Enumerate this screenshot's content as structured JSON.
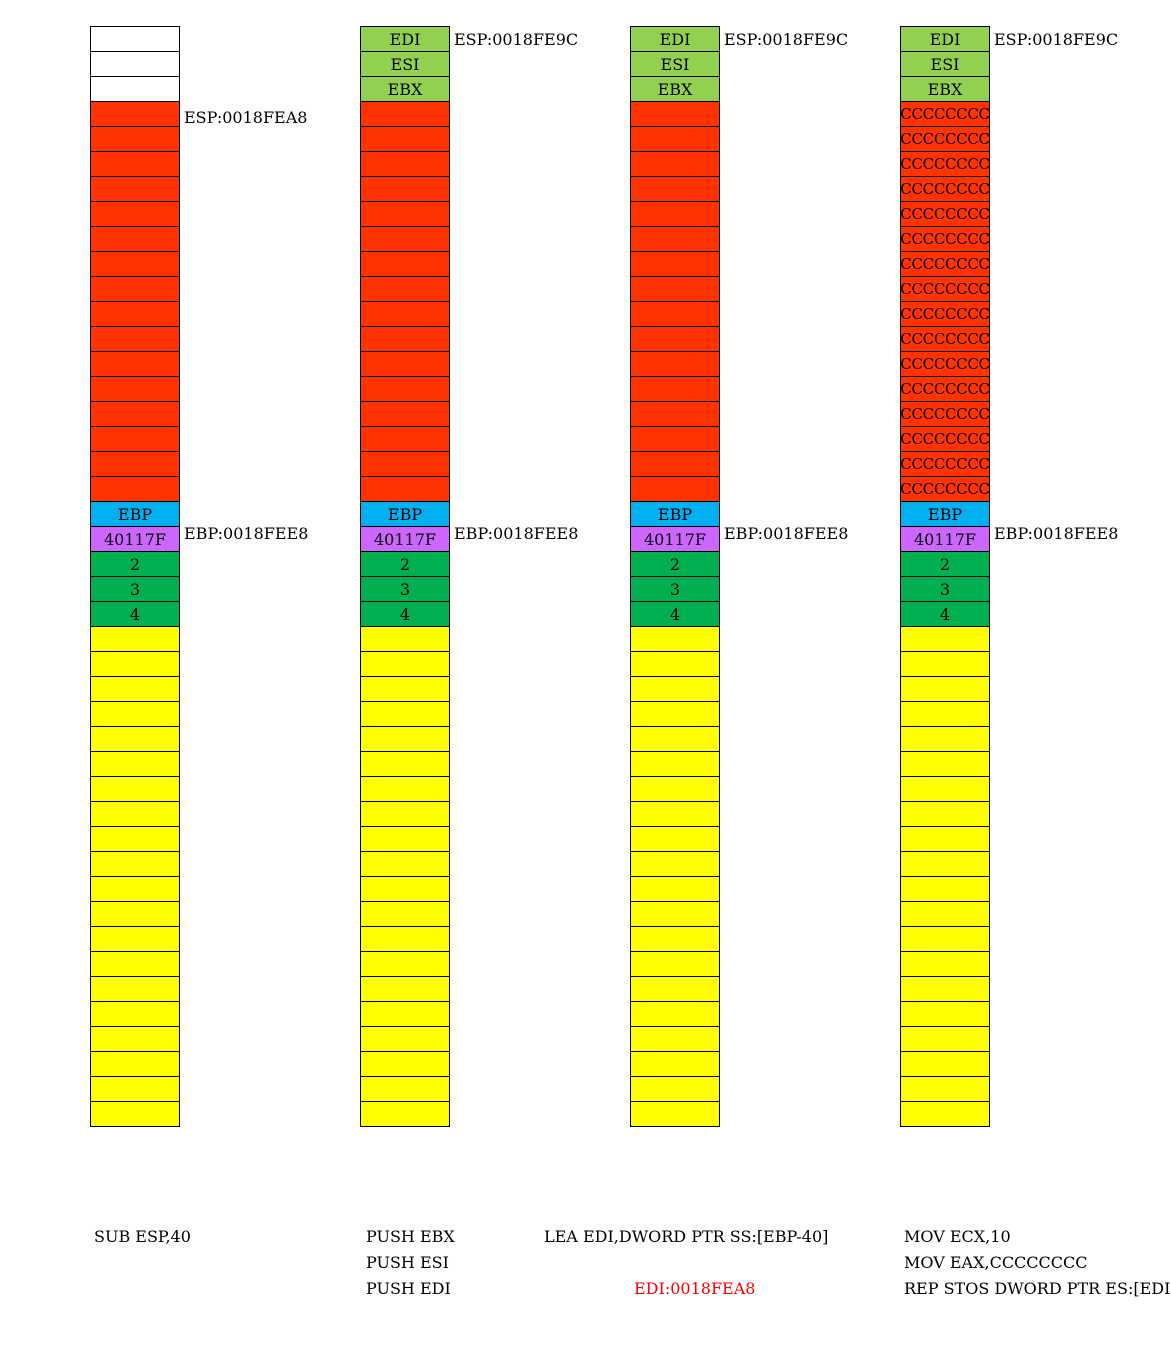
{
  "colors": {
    "empty": "#ffffff",
    "reg_push": "#92d050",
    "local": "#ff3300",
    "ebp": "#00b0f0",
    "ret": "#cc66ff",
    "arg": "#00b050",
    "caller": "#ffff00",
    "edi_note": "#ff0000"
  },
  "columns": [
    {
      "top_cells": [
        "",
        "",
        ""
      ],
      "top_kind": "empty",
      "locals": [
        "",
        "",
        "",
        "",
        "",
        "",
        "",
        "",
        "",
        "",
        "",
        "",
        "",
        "",
        "",
        ""
      ],
      "labels": {
        "esp": "ESP:0018FEA8",
        "ebp": "EBP:0018FEE8"
      }
    },
    {
      "top_cells": [
        "EDI",
        "ESI",
        "EBX"
      ],
      "top_kind": "reg_push",
      "locals": [
        "",
        "",
        "",
        "",
        "",
        "",
        "",
        "",
        "",
        "",
        "",
        "",
        "",
        "",
        "",
        ""
      ],
      "labels": {
        "esp": "ESP:0018FE9C",
        "ebp": "EBP:0018FEE8"
      }
    },
    {
      "top_cells": [
        "EDI",
        "ESI",
        "EBX"
      ],
      "top_kind": "reg_push",
      "locals": [
        "",
        "",
        "",
        "",
        "",
        "",
        "",
        "",
        "",
        "",
        "",
        "",
        "",
        "",
        "",
        ""
      ],
      "labels": {
        "esp": "ESP:0018FE9C",
        "ebp": "EBP:0018FEE8"
      }
    },
    {
      "top_cells": [
        "EDI",
        "ESI",
        "EBX"
      ],
      "top_kind": "reg_push",
      "locals": [
        "CCCCCCCC",
        "CCCCCCCC",
        "CCCCCCCC",
        "CCCCCCCC",
        "CCCCCCCC",
        "CCCCCCCC",
        "CCCCCCCC",
        "CCCCCCCC",
        "CCCCCCCC",
        "CCCCCCCC",
        "CCCCCCCC",
        "CCCCCCCC",
        "CCCCCCCC",
        "CCCCCCCC",
        "CCCCCCCC",
        "CCCCCCCC"
      ],
      "labels": {
        "esp": "ESP:0018FE9C",
        "ebp": "EBP:0018FEE8"
      }
    }
  ],
  "frame": {
    "ebp_cell": "EBP",
    "ret_cell": "40117F",
    "args": [
      "2",
      "3",
      "4"
    ],
    "caller_rows": 20
  },
  "instructions": {
    "col1": "SUB ESP,40",
    "col2": [
      "PUSH EBX",
      "PUSH ESI",
      "PUSH EDI"
    ],
    "col3": "LEA EDI,DWORD PTR SS:[EBP-40]",
    "col3_note": "EDI:0018FEA8",
    "col4": [
      "MOV ECX,10",
      "MOV EAX,CCCCCCCC",
      "REP STOS DWORD PTR ES:[EDI]"
    ]
  }
}
